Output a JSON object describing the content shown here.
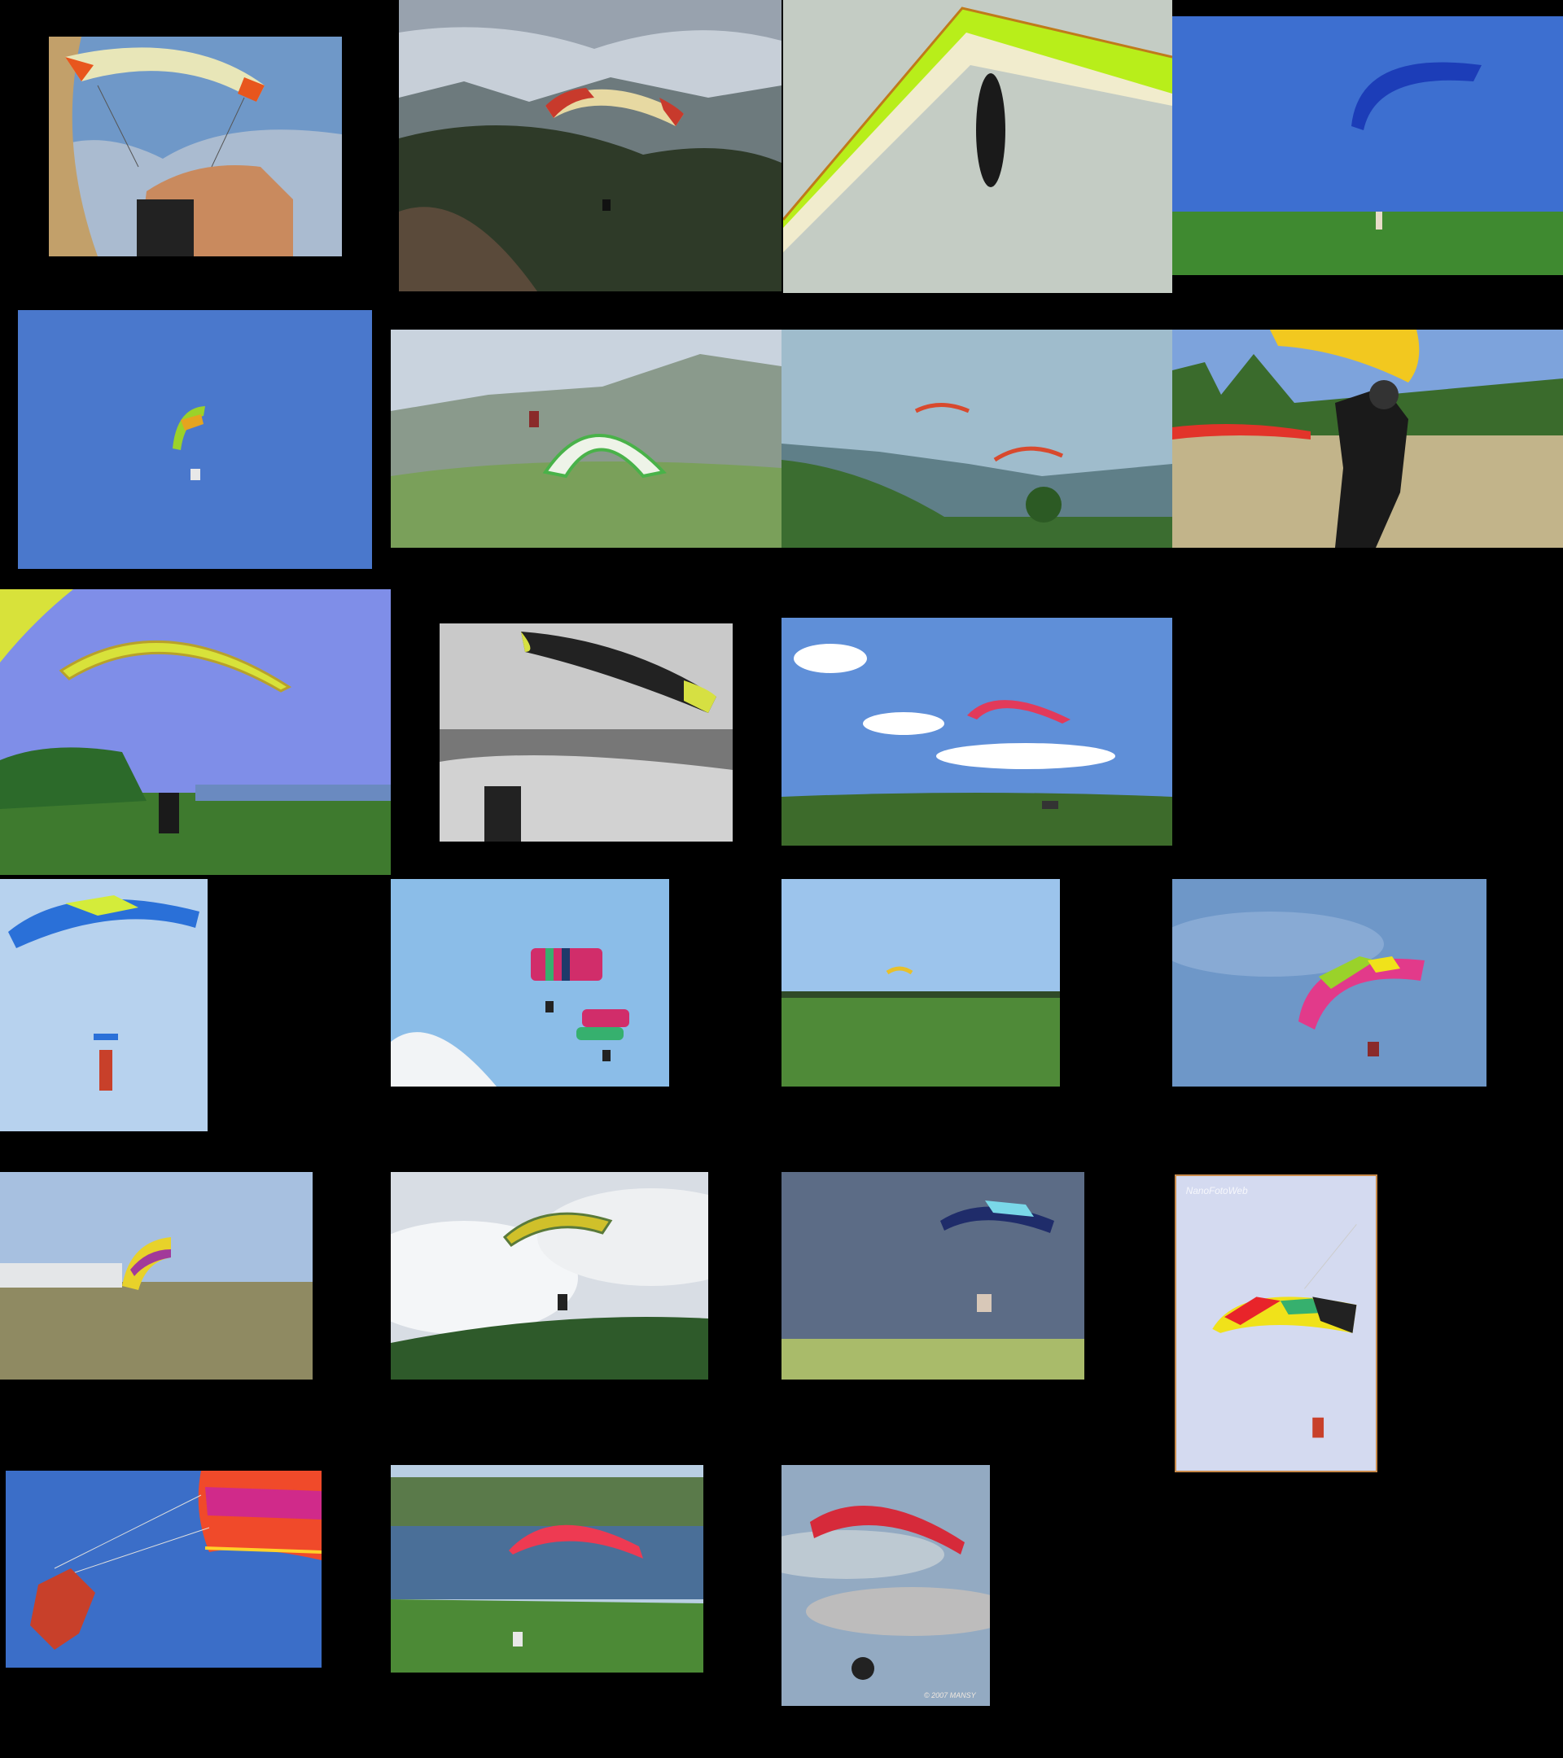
{
  "gallery": {
    "background": "#000000",
    "tiles": [
      {
        "id": "t01",
        "subject": "paraglider-pov-orange-wing",
        "colors": {
          "sky": "#6f98c8",
          "canopy": "#e8e6b8",
          "accent": "#e8561d"
        }
      },
      {
        "id": "t02",
        "subject": "paraglider-over-mountains",
        "colors": {
          "sky": "#c7cfd8",
          "canopy": "#e7d9a2",
          "accent": "#c83a2c"
        }
      },
      {
        "id": "t03",
        "subject": "hang-glider-lime-wing",
        "colors": {
          "sky": "#c4ccc4",
          "canopy": "#b8ee1a",
          "accent": "#f1eccd"
        }
      },
      {
        "id": "t04",
        "subject": "paraglider-blue-wing-launch",
        "colors": {
          "sky": "#3d6fd0",
          "canopy": "#1c3db8",
          "accent": "#3f8a30"
        }
      },
      {
        "id": "t05",
        "subject": "small-paraglider-blue-sky",
        "colors": {
          "sky": "#4a78cc",
          "canopy": "#9bd22a",
          "accent": "#e5a41f"
        }
      },
      {
        "id": "t06",
        "subject": "paraglider-green-white-mountains",
        "colors": {
          "sky": "#c9d3de",
          "canopy": "#eef3e8",
          "accent": "#49b249"
        }
      },
      {
        "id": "t07",
        "subject": "two-paragliders-valley",
        "colors": {
          "sky": "#9fbccc",
          "canopy": "#d8492d",
          "accent": "#3b6d30"
        }
      },
      {
        "id": "t08",
        "subject": "pilot-launching-yellow-wing",
        "colors": {
          "sky": "#7da3dc",
          "canopy": "#f2c81f",
          "accent": "#3a6b2c"
        }
      },
      {
        "id": "t09",
        "subject": "yellow-wing-ground-handling",
        "colors": {
          "sky": "#7f8ee8",
          "canopy": "#d8e23a",
          "accent": "#2c6a2a"
        }
      },
      {
        "id": "t10",
        "subject": "pov-yellow-black-wing-snow",
        "colors": {
          "sky": "#c9c9c9",
          "canopy": "#d6e042",
          "accent": "#222222"
        }
      },
      {
        "id": "t11",
        "subject": "pink-paraglider-clouds",
        "colors": {
          "sky": "#5f8fd8",
          "canopy": "#e23a5a",
          "accent": "#3d6b2b"
        }
      },
      {
        "id": "t12",
        "subject": "skydiver-blue-canopy",
        "colors": {
          "sky": "#b7d2ee",
          "canopy": "#2a70d8",
          "accent": "#d4ec3a"
        }
      },
      {
        "id": "t13",
        "subject": "two-striped-canopies",
        "colors": {
          "sky": "#8bbde8",
          "canopy": "#d12d6a",
          "accent": "#36b06e"
        }
      },
      {
        "id": "t14",
        "subject": "distant-canopy-field",
        "colors": {
          "sky": "#9cc4ec",
          "canopy": "#e8c02a",
          "accent": "#4f8a38"
        }
      },
      {
        "id": "t15",
        "subject": "rainbow-canopy-hazy-sky",
        "colors": {
          "sky": "#6e97c8",
          "canopy": "#e23a8a",
          "accent": "#9ad22a"
        }
      },
      {
        "id": "t16",
        "subject": "yellow-pink-canopy-hangar",
        "colors": {
          "sky": "#a7c0e0",
          "canopy": "#e8d22a",
          "accent": "#a23a9a"
        }
      },
      {
        "id": "t17",
        "subject": "canopy-cloudy-sky-trees",
        "colors": {
          "sky": "#d8dde4",
          "canopy": "#d0c02a",
          "accent": "#2e5a2a"
        }
      },
      {
        "id": "t18",
        "subject": "dark-canopy-storm-sky",
        "colors": {
          "sky": "#5c6c86",
          "canopy": "#1f2c6a",
          "accent": "#a9bb6a"
        }
      },
      {
        "id": "t19",
        "subject": "rainbow-canopy-framed",
        "colors": {
          "sky": "#d4daf0",
          "canopy": "#f0e21a",
          "accent": "#e8242a"
        },
        "watermark": "NanoFotoWeb"
      },
      {
        "id": "t20",
        "subject": "tandem-red-pink-canopy",
        "colors": {
          "sky": "#3b6ec8",
          "canopy": "#f04a2a",
          "accent": "#d02a8a"
        }
      },
      {
        "id": "t21",
        "subject": "red-wing-lake-landing",
        "colors": {
          "sky": "#b9cfe3",
          "canopy": "#ee3a52",
          "accent": "#4c8a36"
        }
      },
      {
        "id": "t22",
        "subject": "red-wing-paramotor",
        "colors": {
          "sky": "#93aac2",
          "canopy": "#d62a3a",
          "accent": "#efe8e0"
        },
        "watermark": "© 2007 MANSY"
      }
    ]
  }
}
